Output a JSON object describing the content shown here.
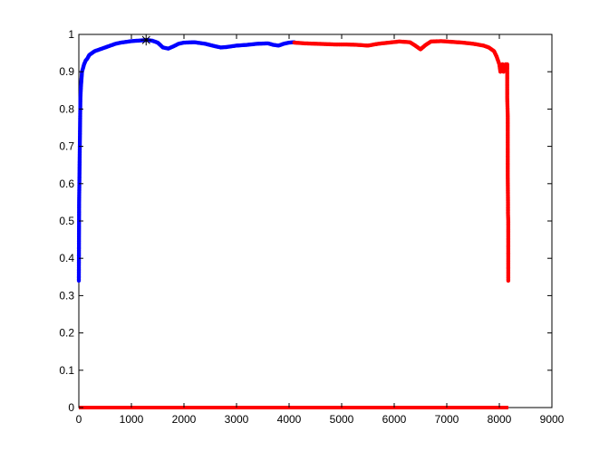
{
  "chart_data": {
    "type": "scatter",
    "title": "",
    "xlabel": "",
    "ylabel": "",
    "xlim": [
      0,
      9000
    ],
    "ylim": [
      0,
      1
    ],
    "xticks": [
      0,
      1000,
      2000,
      3000,
      4000,
      5000,
      6000,
      7000,
      8000,
      9000
    ],
    "yticks": [
      0,
      0.1,
      0.2,
      0.3,
      0.4,
      0.5,
      0.6,
      0.7,
      0.8,
      0.9,
      1
    ],
    "xtick_labels": [
      "0",
      "1000",
      "2000",
      "3000",
      "4000",
      "5000",
      "6000",
      "7000",
      "8000",
      "9000"
    ],
    "ytick_labels": [
      "0",
      "0.1",
      "0.2",
      "0.3",
      "0.4",
      "0.5",
      "0.6",
      "0.7",
      "0.8",
      "0.9",
      "1"
    ],
    "grid": false,
    "legend": "none",
    "series": [
      {
        "color": "#0000ff",
        "marker": "dot",
        "x": [
          0,
          5,
          10,
          15,
          20,
          25,
          30,
          40,
          50,
          60,
          80,
          100,
          130,
          160,
          200,
          250,
          300,
          400,
          500,
          600,
          700,
          800,
          900,
          1000,
          1100,
          1200,
          1300,
          1400,
          1500,
          1600,
          1700,
          1800,
          1900,
          2000,
          2200,
          2400,
          2600,
          2700,
          2800,
          3000,
          3200,
          3400,
          3600,
          3700,
          3800,
          3900,
          4000,
          4100
        ],
        "y": [
          0.34,
          0.55,
          0.6,
          0.66,
          0.72,
          0.78,
          0.83,
          0.86,
          0.88,
          0.9,
          0.91,
          0.92,
          0.93,
          0.935,
          0.945,
          0.95,
          0.955,
          0.96,
          0.965,
          0.97,
          0.975,
          0.978,
          0.98,
          0.982,
          0.983,
          0.984,
          0.985,
          0.983,
          0.978,
          0.965,
          0.962,
          0.968,
          0.975,
          0.978,
          0.979,
          0.975,
          0.968,
          0.965,
          0.966,
          0.97,
          0.972,
          0.975,
          0.976,
          0.972,
          0.97,
          0.975,
          0.978,
          0.979
        ]
      },
      {
        "color": "#ff0000",
        "marker": "dot",
        "x": [
          4100,
          4300,
          4500,
          4700,
          4900,
          5100,
          5300,
          5500,
          5700,
          5900,
          6100,
          6300,
          6400,
          6500,
          6600,
          6700,
          6900,
          7100,
          7300,
          7500,
          7700,
          7800,
          7900,
          7950,
          8000,
          8020,
          8040,
          8060,
          8080,
          8100,
          8120,
          8150,
          8150,
          8150,
          8150,
          8160,
          8160,
          8160,
          8165,
          8165,
          8170,
          8170,
          8170
        ],
        "y": [
          0.978,
          0.976,
          0.975,
          0.974,
          0.973,
          0.973,
          0.972,
          0.97,
          0.975,
          0.978,
          0.981,
          0.979,
          0.97,
          0.96,
          0.972,
          0.981,
          0.982,
          0.98,
          0.978,
          0.975,
          0.97,
          0.965,
          0.955,
          0.94,
          0.92,
          0.9,
          0.91,
          0.92,
          0.9,
          0.915,
          0.92,
          0.92,
          0.91,
          0.85,
          0.83,
          0.78,
          0.69,
          0.62,
          0.55,
          0.52,
          0.5,
          0.38,
          0.34
        ]
      },
      {
        "color": "#ff0000",
        "marker": "line",
        "x": [
          0,
          8170
        ],
        "y": [
          0,
          0
        ]
      },
      {
        "color": "#000000",
        "marker": "star",
        "x": [
          1280
        ],
        "y": [
          0.985
        ]
      }
    ]
  }
}
